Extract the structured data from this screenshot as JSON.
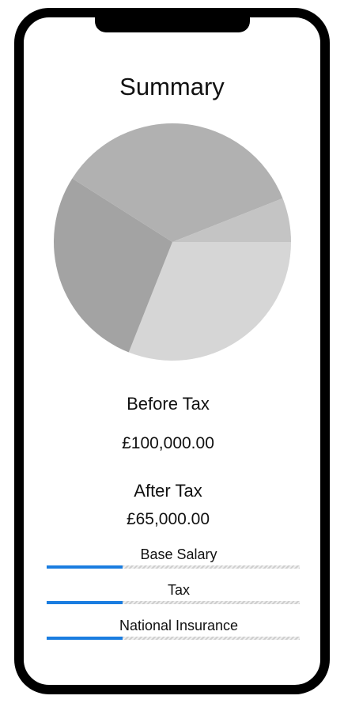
{
  "summary": {
    "title": "Summary",
    "before_tax_label": "Before Tax",
    "before_tax_value": "£100,000.00",
    "after_tax_label": "After Tax",
    "after_tax_value": "£65,000.00"
  },
  "chart_data": {
    "type": "pie",
    "values": [
      31,
      28,
      35,
      6
    ],
    "colors": [
      "#d6d6d6",
      "#a3a3a3",
      "#b1b1b1",
      "#c4c4c4"
    ]
  },
  "bars": [
    {
      "label": "Base Salary",
      "fraction": 0.3
    },
    {
      "label": "Tax",
      "fraction": 0.3
    },
    {
      "label": "National Insurance",
      "fraction": 0.3
    }
  ],
  "colors": {
    "accent": "#1a7de0",
    "frame": "#000000"
  }
}
